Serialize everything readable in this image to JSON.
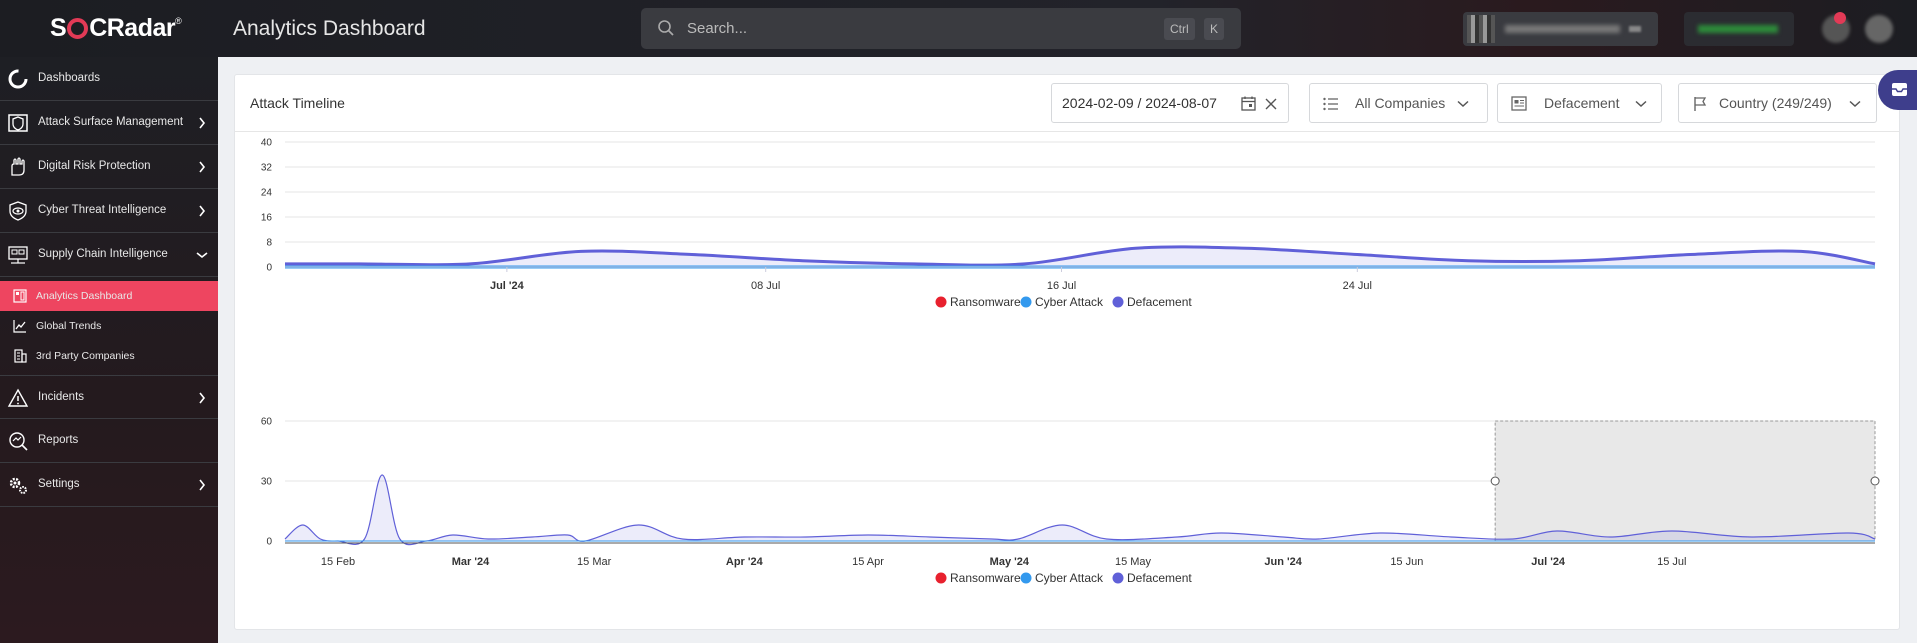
{
  "app": {
    "logo": "SOCRadar",
    "logo_mark": "®",
    "page_title": "Analytics Dashboard"
  },
  "search": {
    "placeholder": "Search...",
    "shortcut_ctrl": "Ctrl",
    "shortcut_key": "K"
  },
  "sidebar": {
    "items": [
      {
        "label": "Dashboards",
        "icon": "dashboard-icon",
        "expandable": false
      },
      {
        "label": "Attack Surface Management",
        "icon": "shield-asm-icon",
        "expandable": true
      },
      {
        "label": "Digital Risk Protection",
        "icon": "hand-shield-icon",
        "expandable": true
      },
      {
        "label": "Cyber Threat Intelligence",
        "icon": "eye-icon",
        "expandable": true
      },
      {
        "label": "Supply Chain Intelligence",
        "icon": "network-icon",
        "expandable": true,
        "expanded": true
      }
    ],
    "sub_items": [
      {
        "label": "Analytics Dashboard",
        "icon": "dashboard-small-icon",
        "active": true
      },
      {
        "label": "Global Trends",
        "icon": "trends-icon",
        "active": false
      },
      {
        "label": "3rd Party Companies",
        "icon": "building-icon",
        "active": false
      }
    ],
    "bottom_items": [
      {
        "label": "Incidents",
        "icon": "alert-icon",
        "expandable": true
      },
      {
        "label": "Reports",
        "icon": "report-icon",
        "expandable": false
      },
      {
        "label": "Settings",
        "icon": "gears-icon",
        "expandable": true
      }
    ]
  },
  "card": {
    "title": "Attack Timeline",
    "date_range": "2024-02-09 / 2024-08-07",
    "companies": "All Companies",
    "type": "Defacement",
    "country": "Country (249/249)"
  },
  "colors": {
    "accent": "#ee4560",
    "ransomware": "#e8212e",
    "cyber_attack": "#3399ee",
    "defacement": "#6060d8"
  },
  "chart_data": [
    {
      "type": "area",
      "title": "",
      "x_ticks": [
        "Jul '24",
        "08 Jul",
        "16 Jul",
        "24 Jul"
      ],
      "x_range": [
        "2024-06-25",
        "2024-08-07"
      ],
      "ylim": [
        0,
        40
      ],
      "y_ticks": [
        0,
        8,
        16,
        24,
        32,
        40
      ],
      "legend": [
        "Ransomware",
        "Cyber Attack",
        "Defacement"
      ],
      "series": [
        {
          "name": "Defacement",
          "x": [
            "2024-06-25",
            "2024-06-27",
            "2024-06-30",
            "2024-07-03",
            "2024-07-06",
            "2024-07-09",
            "2024-07-12",
            "2024-07-15",
            "2024-07-18",
            "2024-07-21",
            "2024-07-24",
            "2024-07-27",
            "2024-07-30",
            "2024-08-02",
            "2024-08-05",
            "2024-08-07"
          ],
          "values": [
            1,
            1,
            1,
            5,
            4,
            2,
            1,
            1,
            6,
            6,
            4,
            2,
            2,
            4,
            5,
            1
          ]
        },
        {
          "name": "Cyber Attack",
          "x": [
            "2024-06-25",
            "2024-08-07"
          ],
          "values": [
            0,
            0
          ]
        },
        {
          "name": "Ransomware",
          "x": [
            "2024-06-25",
            "2024-08-07"
          ],
          "values": [
            0,
            0
          ]
        }
      ]
    },
    {
      "type": "area",
      "title": "",
      "x_ticks": [
        "15 Feb",
        "Mar '24",
        "15 Mar",
        "Apr '24",
        "15 Apr",
        "May '24",
        "15 May",
        "Jun '24",
        "15 Jun",
        "Jul '24",
        "15 Jul"
      ],
      "x_range": [
        "2024-02-09",
        "2024-08-07"
      ],
      "ylim": [
        0,
        60
      ],
      "y_ticks": [
        0,
        30,
        60
      ],
      "legend": [
        "Ransomware",
        "Cyber Attack",
        "Defacement"
      ],
      "selection": [
        "2024-06-25",
        "2024-08-07"
      ],
      "series": [
        {
          "name": "Defacement",
          "x": [
            "2024-02-09",
            "2024-02-11",
            "2024-02-13",
            "2024-02-15",
            "2024-02-18",
            "2024-02-20",
            "2024-02-22",
            "2024-02-25",
            "2024-02-28",
            "2024-03-03",
            "2024-03-08",
            "2024-03-12",
            "2024-03-14",
            "2024-03-20",
            "2024-03-25",
            "2024-04-01",
            "2024-04-08",
            "2024-04-15",
            "2024-04-22",
            "2024-04-29",
            "2024-05-02",
            "2024-05-07",
            "2024-05-12",
            "2024-05-20",
            "2024-05-25",
            "2024-06-01",
            "2024-06-05",
            "2024-06-12",
            "2024-06-20",
            "2024-06-27",
            "2024-07-02",
            "2024-07-08",
            "2024-07-15",
            "2024-07-24",
            "2024-08-04",
            "2024-08-07"
          ],
          "values": [
            1,
            8,
            1,
            0,
            1,
            33,
            1,
            0,
            3,
            1,
            2,
            3,
            0,
            8,
            1,
            2,
            2,
            3,
            2,
            1,
            1,
            8,
            1,
            2,
            4,
            2,
            1,
            4,
            2,
            1,
            5,
            2,
            5,
            2,
            4,
            1
          ]
        },
        {
          "name": "Cyber Attack",
          "x": [
            "2024-02-09",
            "2024-08-07"
          ],
          "values": [
            0,
            0
          ]
        },
        {
          "name": "Ransomware",
          "x": [
            "2024-02-09",
            "2024-08-07"
          ],
          "values": [
            0,
            0
          ]
        }
      ]
    }
  ]
}
